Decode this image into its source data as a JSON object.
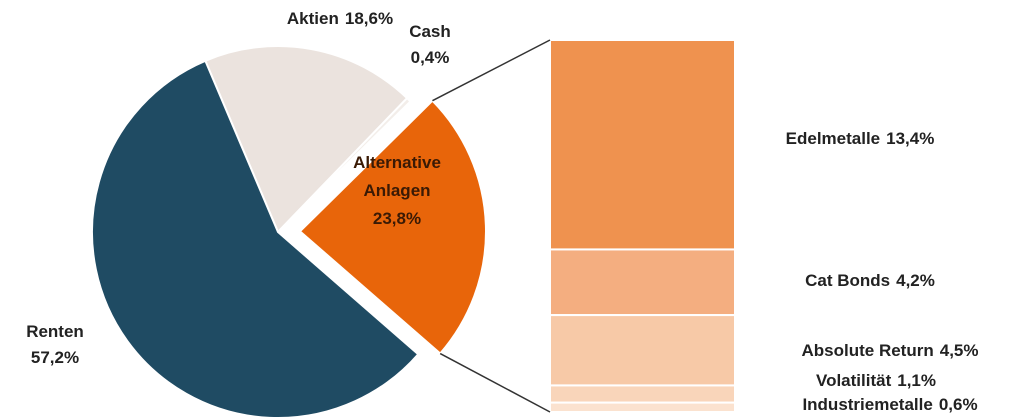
{
  "chart_data": [
    {
      "type": "pie",
      "categories": [
        "Renten",
        "Aktien",
        "Cash",
        "Alternative Anlagen"
      ],
      "values": [
        57.2,
        18.6,
        0.4,
        23.8
      ],
      "value_labels": [
        "57,2%",
        "18,6%",
        "0,4%",
        "23,8%"
      ],
      "colors": [
        "#1f4b63",
        "#ebe3de",
        "#f3eeea",
        "#e8650a"
      ]
    },
    {
      "type": "bar",
      "stacked": true,
      "categories": [
        "Edelmetalle",
        "Cat Bonds",
        "Absolute Return",
        "Volatilität",
        "Industriemetalle"
      ],
      "values": [
        13.4,
        4.2,
        4.5,
        1.1,
        0.6
      ],
      "value_labels": [
        "13,4%",
        "4,2%",
        "4,5%",
        "1,1%",
        "0,6%"
      ],
      "colors": [
        "#ef924f",
        "#f4ae80",
        "#f7c9a7",
        "#f9d5ba",
        "#fbe2cf"
      ]
    }
  ]
}
